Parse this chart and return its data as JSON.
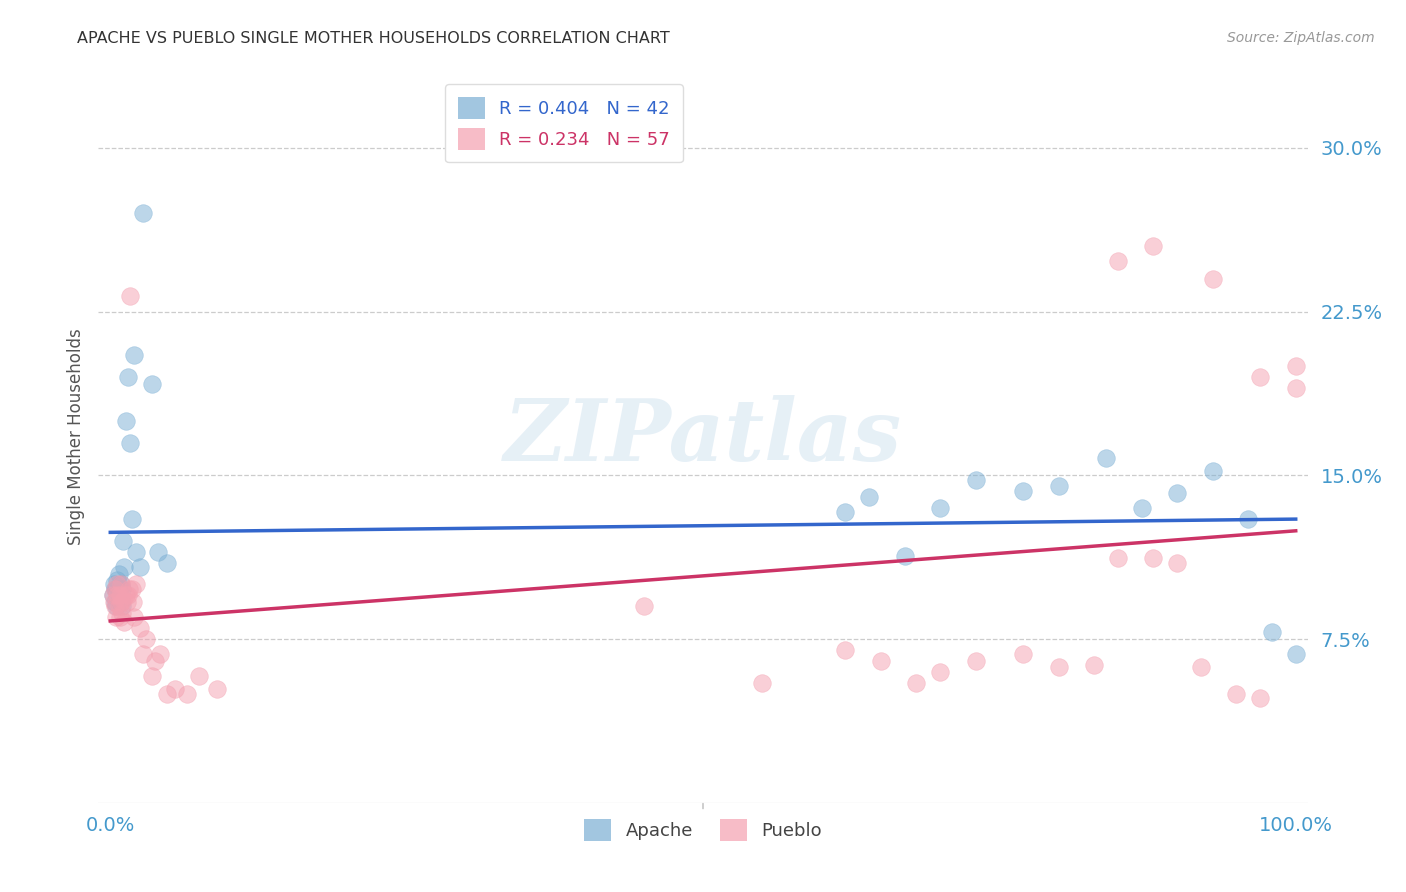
{
  "title": "APACHE VS PUEBLO SINGLE MOTHER HOUSEHOLDS CORRELATION CHART",
  "source": "Source: ZipAtlas.com",
  "ylabel": "Single Mother Households",
  "ytick_labels": [
    "7.5%",
    "15.0%",
    "22.5%",
    "30.0%"
  ],
  "ytick_values": [
    0.075,
    0.15,
    0.225,
    0.3
  ],
  "xlim": [
    -0.01,
    1.01
  ],
  "ylim": [
    0.0,
    0.335
  ],
  "apache_color": "#7BAFD4",
  "pueblo_color": "#F4A0B0",
  "apache_line_color": "#3366CC",
  "pueblo_line_color": "#CC3366",
  "legend_apache_color": "#3366CC",
  "legend_pueblo_color": "#CC3366",
  "apache_R": 0.404,
  "apache_N": 42,
  "pueblo_R": 0.234,
  "pueblo_N": 57,
  "apache_x": [
    0.002,
    0.003,
    0.004,
    0.004,
    0.005,
    0.005,
    0.006,
    0.007,
    0.007,
    0.008,
    0.008,
    0.009,
    0.009,
    0.01,
    0.01,
    0.011,
    0.012,
    0.013,
    0.015,
    0.017,
    0.018,
    0.02,
    0.022,
    0.025,
    0.028,
    0.035,
    0.04,
    0.048,
    0.62,
    0.64,
    0.67,
    0.7,
    0.73,
    0.77,
    0.8,
    0.84,
    0.87,
    0.9,
    0.93,
    0.96,
    0.98,
    1.0
  ],
  "apache_y": [
    0.095,
    0.1,
    0.098,
    0.092,
    0.098,
    0.09,
    0.102,
    0.095,
    0.105,
    0.098,
    0.092,
    0.1,
    0.093,
    0.09,
    0.098,
    0.12,
    0.108,
    0.175,
    0.195,
    0.165,
    0.13,
    0.205,
    0.115,
    0.108,
    0.27,
    0.192,
    0.115,
    0.11,
    0.133,
    0.14,
    0.113,
    0.135,
    0.148,
    0.143,
    0.145,
    0.158,
    0.135,
    0.142,
    0.152,
    0.13,
    0.078,
    0.068
  ],
  "pueblo_x": [
    0.002,
    0.003,
    0.004,
    0.004,
    0.005,
    0.006,
    0.006,
    0.007,
    0.008,
    0.008,
    0.009,
    0.009,
    0.01,
    0.011,
    0.012,
    0.013,
    0.014,
    0.015,
    0.016,
    0.017,
    0.018,
    0.019,
    0.02,
    0.022,
    0.025,
    0.028,
    0.03,
    0.035,
    0.038,
    0.042,
    0.048,
    0.055,
    0.065,
    0.075,
    0.09,
    0.45,
    0.55,
    0.62,
    0.65,
    0.68,
    0.7,
    0.73,
    0.77,
    0.8,
    0.83,
    0.85,
    0.88,
    0.9,
    0.92,
    0.95,
    0.97,
    1.0,
    0.85,
    0.88,
    0.93,
    0.97,
    1.0
  ],
  "pueblo_y": [
    0.095,
    0.092,
    0.09,
    0.098,
    0.085,
    0.095,
    0.1,
    0.09,
    0.095,
    0.085,
    0.1,
    0.092,
    0.087,
    0.093,
    0.083,
    0.095,
    0.092,
    0.095,
    0.098,
    0.232,
    0.098,
    0.092,
    0.085,
    0.1,
    0.08,
    0.068,
    0.075,
    0.058,
    0.065,
    0.068,
    0.05,
    0.052,
    0.05,
    0.058,
    0.052,
    0.09,
    0.055,
    0.07,
    0.065,
    0.055,
    0.06,
    0.065,
    0.068,
    0.062,
    0.063,
    0.112,
    0.112,
    0.11,
    0.062,
    0.05,
    0.048,
    0.19,
    0.248,
    0.255,
    0.24,
    0.195,
    0.2
  ],
  "watermark_text": "ZIPatlas",
  "watermark_color": "#B8D4E8",
  "background_color": "#ffffff",
  "grid_color": "#cccccc",
  "tick_label_color": "#4499CC",
  "title_color": "#333333",
  "source_color": "#999999",
  "ylabel_color": "#555555"
}
